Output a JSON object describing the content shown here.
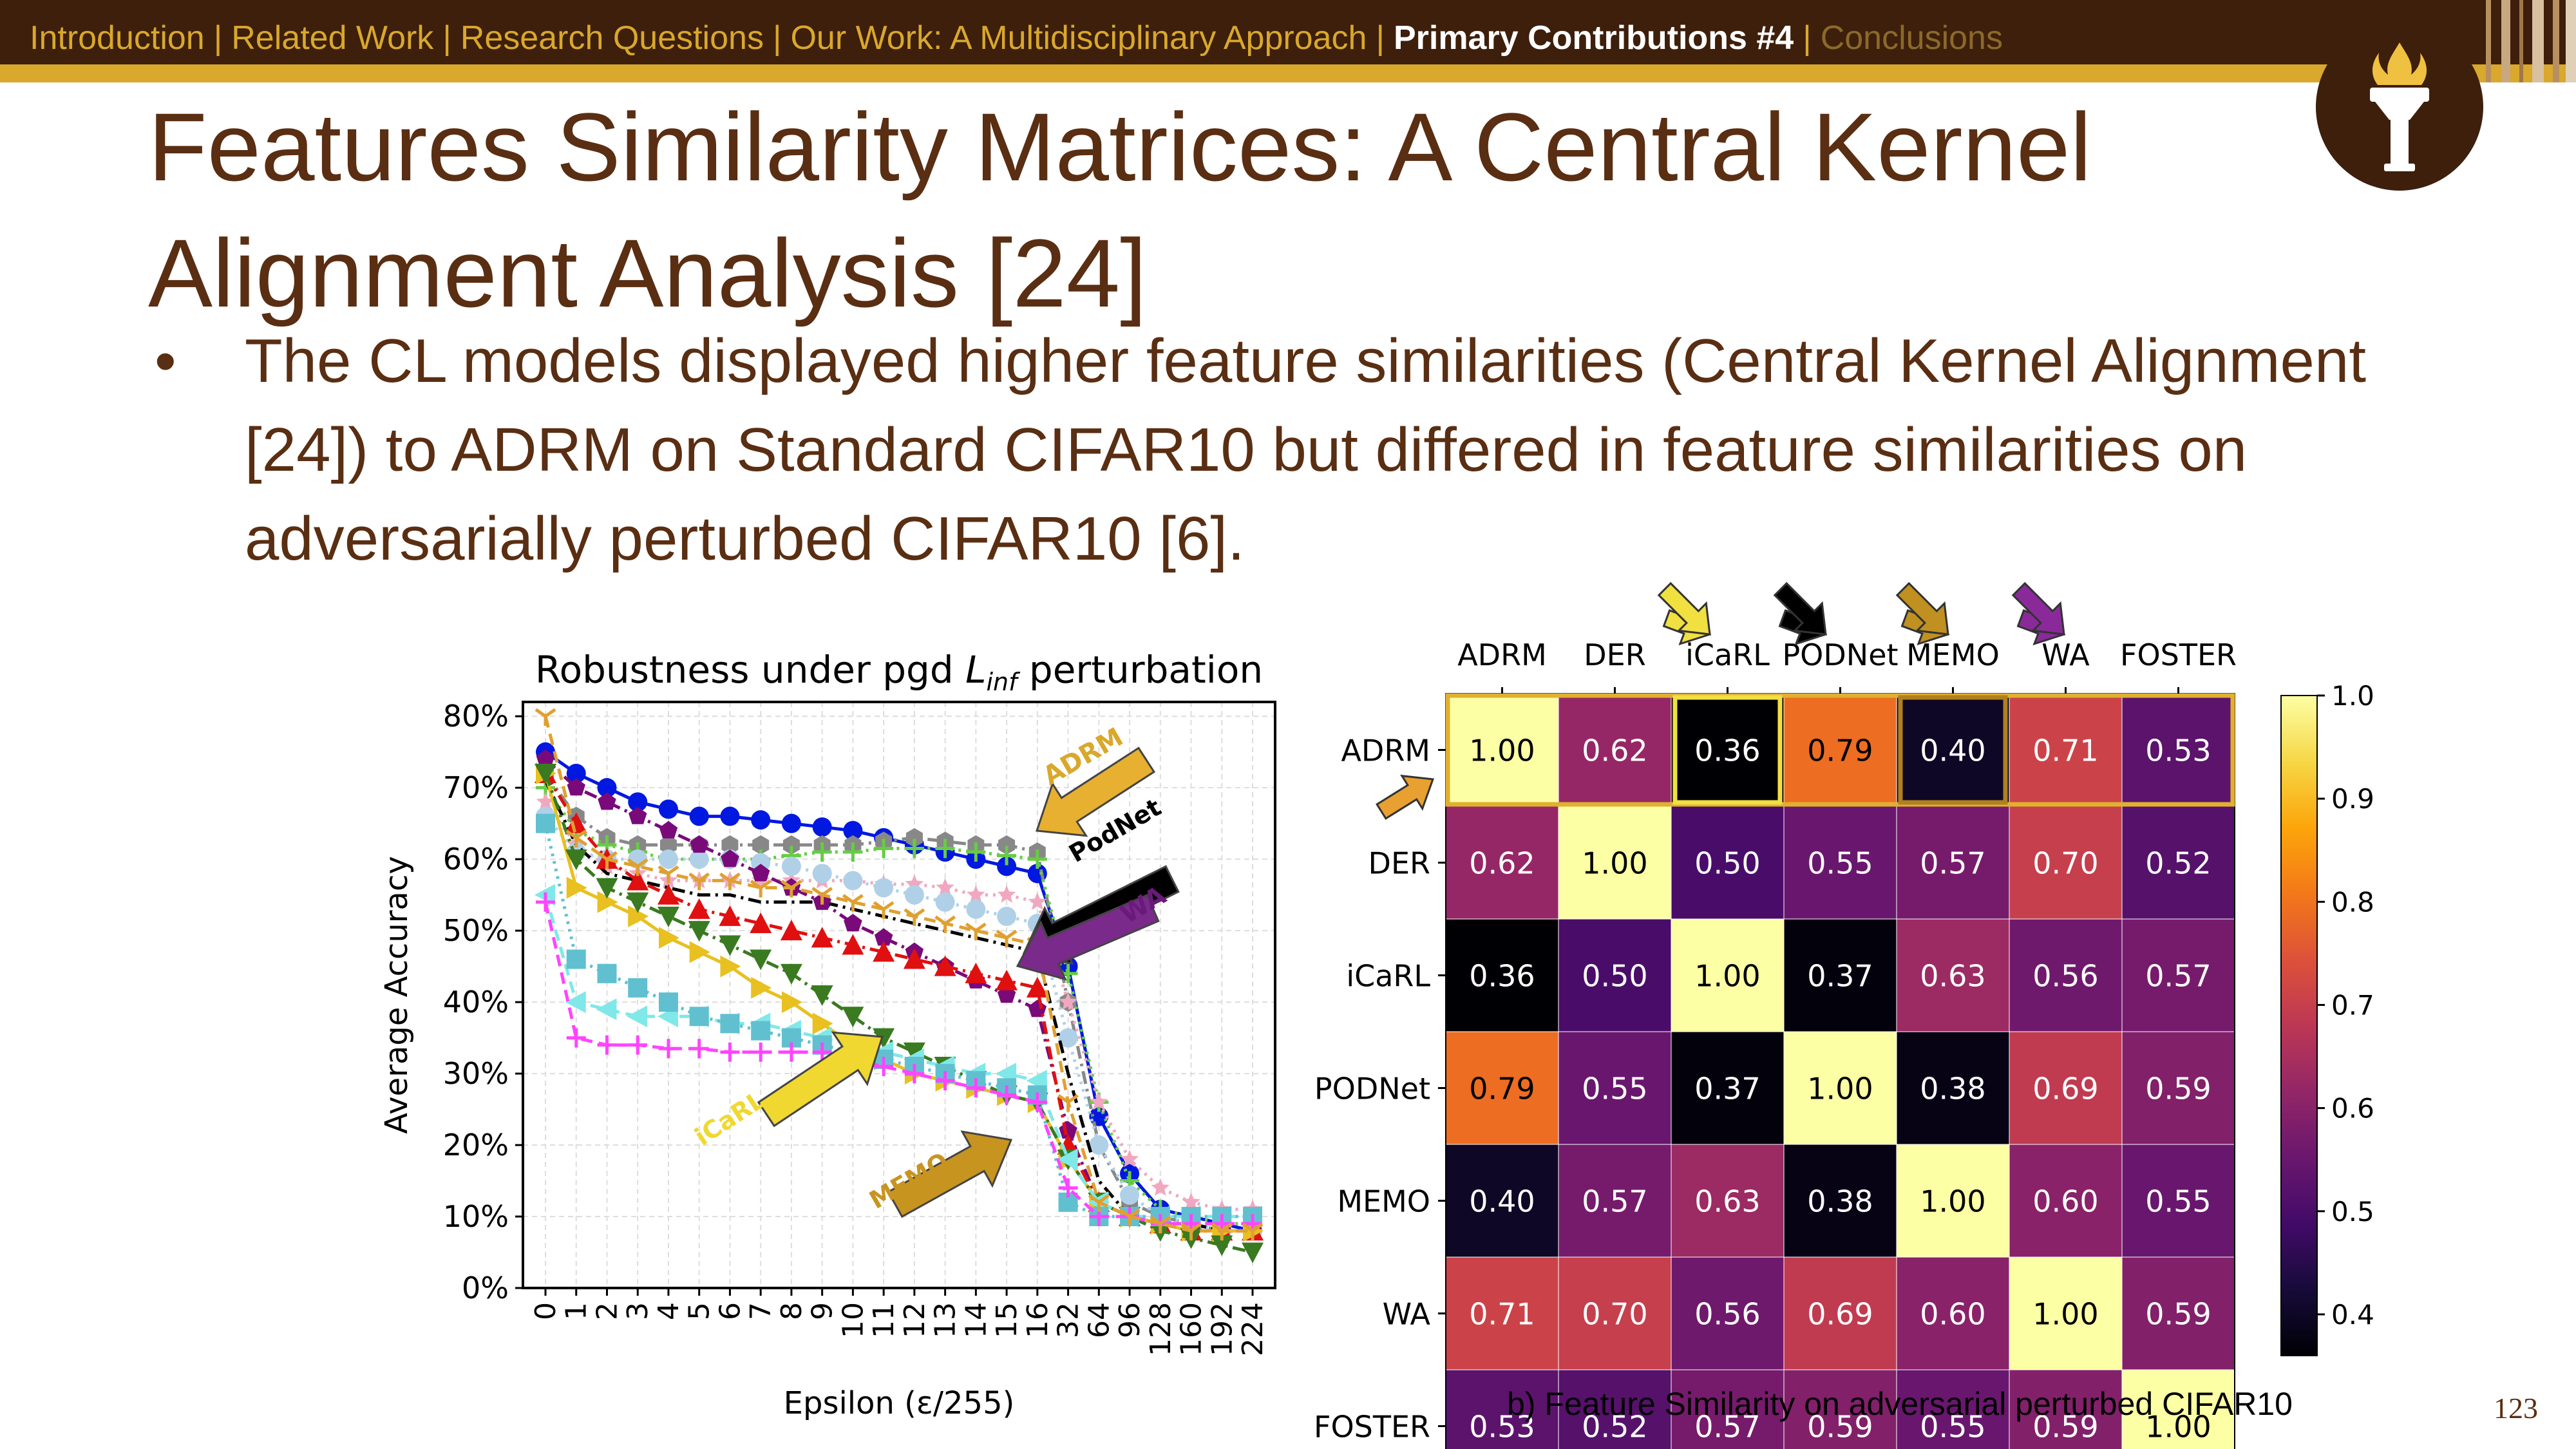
{
  "nav": {
    "items": [
      {
        "label": "Introduction",
        "state": "past"
      },
      {
        "label": "Related Work",
        "state": "past"
      },
      {
        "label": "Research Questions",
        "state": "past"
      },
      {
        "label": "Our Work: A Multidisciplinary Approach",
        "state": "past"
      },
      {
        "label": "Primary Contributions #4",
        "state": "active"
      },
      {
        "label": "Conclusions",
        "state": "future"
      }
    ],
    "separator": "|"
  },
  "slide": {
    "title": "Features Similarity Matrices: A Central Kernel Alignment Analysis [24]",
    "bullet": "The CL models displayed higher feature similarities (Central Kernel Alignment [24]) to ADRM on Standard CIFAR10 but differed in feature similarities on adversarially perturbed CIFAR10 [6].",
    "bullet_marker": "•",
    "page_number": "123"
  },
  "colors": {
    "nav_bg": "#3d1f0c",
    "accent_gold": "#d9a82c",
    "title_brown": "#5a2e12"
  },
  "icons": {
    "logo": "torch-logo-icon"
  },
  "chart_data": [
    {
      "type": "line",
      "title_prefix": "Robustness under pgd ",
      "title_symbol": "L",
      "title_subscript": "inf",
      "title_suffix": " perturbation",
      "xlabel": "Epsilon (ε/255)",
      "ylabel": "Average Accuracy",
      "categories": [
        "0",
        "1",
        "2",
        "3",
        "4",
        "5",
        "6",
        "7",
        "8",
        "9",
        "10",
        "11",
        "12",
        "13",
        "14",
        "15",
        "16",
        "32",
        "64",
        "96",
        "128",
        "160",
        "192",
        "224"
      ],
      "yticks": [
        "0%",
        "10%",
        "20%",
        "30%",
        "40%",
        "50%",
        "60%",
        "70%",
        "80%"
      ],
      "ylim": [
        0,
        82
      ],
      "grid": true,
      "series": [
        {
          "color": "#0018e0",
          "marker": "circle",
          "dash": "solid",
          "values": [
            75,
            72,
            70,
            68,
            67,
            66,
            66,
            65.5,
            65,
            64.5,
            64,
            63,
            62,
            61,
            60,
            59,
            58,
            45,
            24,
            16,
            11,
            10,
            9,
            8
          ]
        },
        {
          "color": "#888888",
          "marker": "hexagon",
          "dash": "dashdot",
          "values": [
            72,
            66,
            63,
            62,
            62,
            62,
            62,
            62,
            62,
            62,
            62,
            62.5,
            63,
            62.5,
            62,
            62,
            61,
            40,
            20,
            12,
            10,
            9,
            8,
            8
          ]
        },
        {
          "color": "#66cc44",
          "marker": "plus",
          "dash": "dotted",
          "values": [
            70,
            64,
            62,
            61,
            60,
            60,
            60,
            60,
            60.5,
            61,
            61,
            61.5,
            61.5,
            61.5,
            61,
            60.5,
            60,
            44,
            26,
            15,
            11,
            10,
            9,
            9
          ]
        },
        {
          "color": "#f0a8c0",
          "marker": "star",
          "dash": "dotted",
          "values": [
            68,
            62,
            59,
            58,
            57,
            57,
            57,
            57,
            57,
            57,
            57,
            56.5,
            56.5,
            56,
            55,
            55,
            54,
            40,
            26,
            18,
            14,
            12,
            11,
            11
          ]
        },
        {
          "color": "#b0d0e8",
          "marker": "circle",
          "dash": "dotted",
          "values": [
            66,
            61,
            60,
            60,
            60,
            60,
            60,
            59.5,
            59,
            58,
            57,
            56,
            55,
            54,
            53,
            52,
            51,
            35,
            20,
            13,
            10,
            9,
            8,
            8
          ]
        },
        {
          "color": "#000000",
          "marker": "none",
          "dash": "dashdot",
          "values": [
            71,
            62,
            58,
            57,
            56,
            55,
            55,
            54,
            54,
            54,
            53,
            52,
            51,
            50,
            49,
            48,
            47,
            30,
            15,
            10,
            9,
            9,
            8,
            8
          ]
        },
        {
          "color": "#7a0a7a",
          "marker": "pentagon",
          "dash": "dashdot",
          "values": [
            74,
            70,
            68,
            66,
            64,
            62,
            60,
            58,
            56,
            54,
            51,
            49,
            47,
            45,
            43,
            41,
            39,
            22,
            12,
            10,
            9,
            8,
            8,
            8
          ]
        },
        {
          "color": "#e01010",
          "marker": "triangle",
          "dash": "dashdot",
          "values": [
            72,
            65,
            60,
            57,
            55,
            53,
            52,
            51,
            50,
            49,
            48,
            47,
            46,
            45,
            44,
            43,
            42,
            20,
            12,
            10,
            9,
            8,
            8,
            8
          ]
        },
        {
          "color": "#e8c020",
          "marker": "triangle-right",
          "dash": "solid",
          "values": [
            72,
            56,
            54,
            52,
            49,
            47,
            45,
            42,
            40,
            37,
            34,
            32,
            30,
            29,
            28,
            27,
            26,
            18,
            12,
            10,
            9,
            8,
            8,
            8
          ]
        },
        {
          "color": "#3a7a20",
          "marker": "triangle-down",
          "dash": "dashdot",
          "values": [
            72,
            60,
            56,
            54,
            52,
            50,
            48,
            46,
            44,
            41,
            38,
            35,
            33,
            31,
            29,
            27,
            26,
            18,
            12,
            10,
            8,
            7,
            6,
            5
          ]
        },
        {
          "color": "#80e8e8",
          "marker": "triangle-left",
          "dash": "dashed",
          "values": [
            55,
            40,
            39,
            38,
            38,
            38,
            37,
            37,
            36,
            35,
            34,
            33,
            32,
            31,
            30,
            30,
            29,
            18,
            12,
            10,
            10,
            10,
            10,
            10
          ]
        },
        {
          "color": "#60c0d0",
          "marker": "square",
          "dash": "dotted",
          "values": [
            65,
            46,
            44,
            42,
            40,
            38,
            37,
            36,
            35,
            34,
            33,
            32,
            31,
            30,
            29,
            28,
            27,
            12,
            10,
            10,
            10,
            10,
            10,
            10
          ]
        },
        {
          "color": "#ff44ff",
          "marker": "plus",
          "dash": "dashed",
          "values": [
            54,
            35,
            34,
            34,
            33.5,
            33.5,
            33,
            33,
            33,
            33,
            32,
            31,
            30,
            29,
            28,
            27,
            26,
            14,
            10,
            10,
            9,
            9,
            9,
            9
          ]
        },
        {
          "color": "#e0a030",
          "marker": "y-tri",
          "dash": "dashed",
          "values": [
            80,
            63,
            60,
            59,
            58,
            57,
            57,
            56,
            56,
            55,
            54,
            53,
            52,
            51,
            50,
            49,
            48,
            26,
            12,
            10,
            9,
            8,
            8,
            8
          ]
        }
      ],
      "annotations": [
        {
          "text": "ADRM",
          "color": "#d9a82c"
        },
        {
          "text": "PodNet",
          "color": "#000000"
        },
        {
          "text": "WA",
          "color": "#6a1a7a"
        },
        {
          "text": "iCaRL",
          "color": "#f0d830"
        },
        {
          "text": "MEMO",
          "color": "#c89420"
        }
      ]
    },
    {
      "type": "heatmap",
      "caption": "b) Feature Similarity on adversarial perturbed CIFAR10",
      "x_labels": [
        "ADRM",
        "DER",
        "iCaRL",
        "PODNet",
        "MEMO",
        "WA",
        "FOSTER"
      ],
      "y_labels": [
        "ADRM",
        "DER",
        "iCaRL",
        "PODNet",
        "MEMO",
        "WA",
        "FOSTER"
      ],
      "values": [
        [
          "1.00",
          "0.62",
          "0.36",
          "0.79",
          "0.40",
          "0.71",
          "0.53"
        ],
        [
          "0.62",
          "1.00",
          "0.50",
          "0.55",
          "0.57",
          "0.70",
          "0.52"
        ],
        [
          "0.36",
          "0.50",
          "1.00",
          "0.37",
          "0.63",
          "0.56",
          "0.57"
        ],
        [
          "0.79",
          "0.55",
          "0.37",
          "1.00",
          "0.38",
          "0.69",
          "0.59"
        ],
        [
          "0.40",
          "0.57",
          "0.63",
          "0.38",
          "1.00",
          "0.60",
          "0.55"
        ],
        [
          "0.71",
          "0.70",
          "0.56",
          "0.69",
          "0.60",
          "1.00",
          "0.59"
        ],
        [
          "0.53",
          "0.52",
          "0.57",
          "0.59",
          "0.55",
          "0.59",
          "1.00"
        ]
      ],
      "colorbar_ticks": [
        "0.4",
        "0.5",
        "0.6",
        "0.7",
        "0.8",
        "0.9",
        "1.0"
      ],
      "colorbar_range": [
        0.36,
        1.0
      ],
      "colormap": "inferno",
      "highlight_row": 0,
      "highlight_color": "#e0b030",
      "highlight_cells": [
        {
          "col": 2,
          "color": "#f0e040"
        },
        {
          "col": 4,
          "color": "#b08020"
        }
      ],
      "arrows": [
        {
          "target": "ADRM row",
          "color": "#e8a030",
          "orientation": "row"
        },
        {
          "target": "iCaRL",
          "color": "#f0e040",
          "orientation": "col"
        },
        {
          "target": "PODNet",
          "color": "#000000",
          "orientation": "col"
        },
        {
          "target": "MEMO",
          "color": "#c09020",
          "orientation": "col"
        },
        {
          "target": "WA",
          "color": "#8a2a9a",
          "orientation": "col"
        }
      ]
    }
  ]
}
